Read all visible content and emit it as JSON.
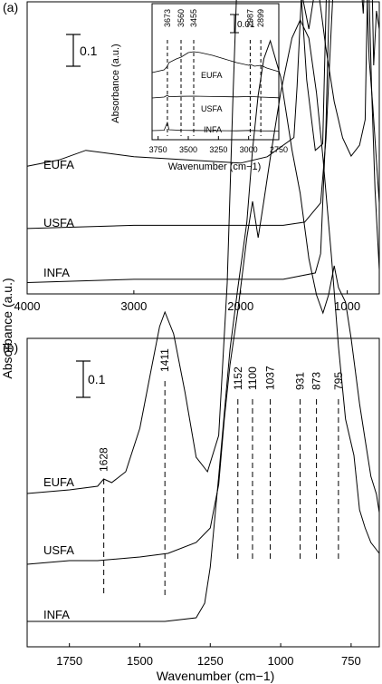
{
  "y_axis_label": "Absorbance (a.u.)",
  "chart_data": [
    {
      "panel": "(a)",
      "type": "line",
      "xlabel": "",
      "xlim": [
        4000,
        700
      ],
      "xticks": [
        4000,
        3000,
        2000,
        1000
      ],
      "scale_bar": "0.1",
      "series": [
        {
          "name": "EUFA",
          "x": [
            4000,
            3700,
            3450,
            3000,
            2000,
            1750,
            1500,
            1470,
            1430,
            1380,
            1300,
            1230,
            1180,
            1150,
            1120,
            1100,
            1080,
            1050,
            1000,
            960,
            930,
            900,
            880,
            873,
            860,
            820,
            795,
            760,
            740,
            720,
            700
          ],
          "y": [
            0.005,
            0.007,
            0.01,
            0.008,
            0.006,
            0.008,
            0.014,
            0.03,
            0.058,
            0.032,
            0.01,
            0.012,
            0.08,
            0.165,
            0.205,
            0.225,
            0.2,
            0.185,
            0.188,
            0.178,
            0.19,
            0.17,
            0.205,
            0.225,
            0.175,
            0.16,
            0.145,
            0.15,
            0.125,
            0.17,
            0.2
          ]
        },
        {
          "name": "USFA",
          "x": [
            4000,
            3000,
            2000,
            1600,
            1400,
            1250,
            1200,
            1150,
            1100,
            1060,
            1000,
            960,
            930,
            900,
            873,
            850,
            820,
            795,
            760,
            720,
            700
          ],
          "y": [
            0.002,
            0.003,
            0.003,
            0.003,
            0.004,
            0.01,
            0.03,
            0.065,
            0.098,
            0.105,
            0.128,
            0.14,
            0.14,
            0.135,
            0.125,
            0.11,
            0.08,
            0.055,
            0.04,
            0.02,
            0.01
          ]
        },
        {
          "name": "INFA",
          "x": [
            4000,
            3000,
            2000,
            1600,
            1300,
            1250,
            1200,
            1150,
            1100,
            1060,
            1040,
            1000,
            960,
            930,
            900,
            873,
            850,
            820,
            795,
            770,
            740,
            700
          ],
          "y": [
            0.001,
            0.002,
            0.002,
            0.002,
            0.004,
            0.01,
            0.05,
            0.115,
            0.18,
            0.215,
            0.22,
            0.2,
            0.17,
            0.15,
            0.115,
            0.095,
            0.085,
            0.11,
            0.09,
            0.06,
            0.03,
            0.005
          ]
        }
      ]
    },
    {
      "panel": "inset",
      "type": "line",
      "ylabel": "Absorbance (a.u.)",
      "xlabel": "Wavenumber (cm−1)",
      "xlim": [
        3800,
        2750
      ],
      "xticks": [
        3750,
        3500,
        3250,
        3000,
        2750
      ],
      "scale_bar": "0.01",
      "peak_labels": [
        {
          "value": 3673,
          "label": "3673"
        },
        {
          "value": 3560,
          "label": "3560"
        },
        {
          "value": 3455,
          "label": "3455"
        },
        {
          "value": 2987,
          "label": "2987"
        },
        {
          "value": 2899,
          "label": "2899"
        }
      ],
      "series": [
        {
          "name": "EUFA",
          "x": [
            3800,
            3700,
            3673,
            3660,
            3600,
            3560,
            3500,
            3455,
            3400,
            3300,
            3200,
            3100,
            3000,
            2987,
            2950,
            2899,
            2850,
            2750
          ],
          "y": [
            0.0165,
            0.018,
            0.02,
            0.022,
            0.024,
            0.025,
            0.0275,
            0.028,
            0.0275,
            0.026,
            0.024,
            0.022,
            0.0205,
            0.021,
            0.02,
            0.0205,
            0.019,
            0.017
          ]
        },
        {
          "name": "USFA",
          "x": [
            3800,
            3700,
            3673,
            3660,
            3560,
            3455,
            3300,
            3100,
            2987,
            2899,
            2750
          ],
          "y": [
            0.0095,
            0.01,
            0.011,
            0.0102,
            0.0104,
            0.0105,
            0.0103,
            0.0101,
            0.0103,
            0.01,
            0.0096
          ]
        },
        {
          "name": "INFA",
          "x": [
            3800,
            3700,
            3673,
            3660,
            3560,
            3455,
            3300,
            3100,
            2987,
            2899,
            2750
          ],
          "y": [
            0.003,
            0.0032,
            0.0075,
            0.0035,
            0.0032,
            0.0031,
            0.003,
            0.0029,
            0.0031,
            0.0029,
            0.0028
          ]
        }
      ]
    },
    {
      "panel": "(b)",
      "type": "line",
      "xlabel": "Wavenumber (cm−1)",
      "xlim": [
        1900,
        650
      ],
      "xticks": [
        1750,
        1500,
        1250,
        1000,
        750
      ],
      "scale_bar": "0.1",
      "peak_labels": [
        {
          "value": 1628,
          "label": "1628"
        },
        {
          "value": 1411,
          "label": "1411"
        },
        {
          "value": 1152,
          "label": "1152"
        },
        {
          "value": 1100,
          "label": "1100"
        },
        {
          "value": 1037,
          "label": "1037"
        },
        {
          "value": 931,
          "label": "931"
        },
        {
          "value": 873,
          "label": "873"
        },
        {
          "value": 795,
          "label": "795"
        }
      ],
      "series": [
        {
          "name": "EUFA",
          "x": [
            1900,
            1750,
            1650,
            1628,
            1600,
            1550,
            1500,
            1460,
            1430,
            1411,
            1380,
            1340,
            1300,
            1260,
            1220,
            1190,
            1170,
            1152,
            1130,
            1110,
            1100,
            1080,
            1060,
            1037,
            1000,
            960,
            931,
            900,
            880,
            873,
            865,
            840,
            810,
            795,
            780,
            750,
            720,
            700,
            690,
            680,
            670,
            660,
            650
          ],
          "y": [
            0.002,
            0.003,
            0.004,
            0.006,
            0.005,
            0.008,
            0.02,
            0.036,
            0.048,
            0.052,
            0.046,
            0.03,
            0.012,
            0.008,
            0.018,
            0.06,
            0.11,
            0.15,
            0.162,
            0.178,
            0.185,
            0.175,
            0.15,
            0.148,
            0.15,
            0.14,
            0.142,
            0.13,
            0.14,
            0.16,
            0.14,
            0.125,
            0.11,
            0.105,
            0.1,
            0.095,
            0.098,
            0.105,
            0.15,
            0.16,
            0.12,
            0.135,
            0.13
          ]
        },
        {
          "name": "USFA",
          "x": [
            1900,
            1750,
            1650,
            1500,
            1400,
            1300,
            1250,
            1220,
            1200,
            1180,
            1152,
            1120,
            1100,
            1080,
            1060,
            1037,
            1000,
            960,
            931,
            900,
            873,
            850,
            820,
            795,
            770,
            740,
            720,
            700,
            680,
            660,
            650
          ],
          "y": [
            0.0,
            0.001,
            0.001,
            0.002,
            0.003,
            0.006,
            0.01,
            0.022,
            0.04,
            0.055,
            0.07,
            0.09,
            0.1,
            0.09,
            0.1,
            0.112,
            0.13,
            0.145,
            0.15,
            0.145,
            0.13,
            0.112,
            0.085,
            0.06,
            0.04,
            0.03,
            0.015,
            0.01,
            0.006,
            0.004,
            0.003
          ]
        },
        {
          "name": "INFA",
          "x": [
            1900,
            1750,
            1628,
            1500,
            1411,
            1300,
            1270,
            1250,
            1220,
            1180,
            1152,
            1120,
            1100,
            1080,
            1060,
            1037,
            1000,
            960,
            931,
            900,
            873,
            850,
            830,
            810,
            795,
            770,
            750,
            720,
            700,
            680,
            660,
            650
          ],
          "y": [
            0.0,
            0.0,
            0.0,
            0.0,
            0.0,
            0.001,
            0.005,
            0.015,
            0.04,
            0.075,
            0.092,
            0.11,
            0.13,
            0.145,
            0.155,
            0.16,
            0.15,
            0.13,
            0.118,
            0.1,
            0.09,
            0.085,
            0.09,
            0.098,
            0.092,
            0.088,
            0.078,
            0.06,
            0.05,
            0.04,
            0.035,
            0.03
          ]
        }
      ]
    }
  ]
}
